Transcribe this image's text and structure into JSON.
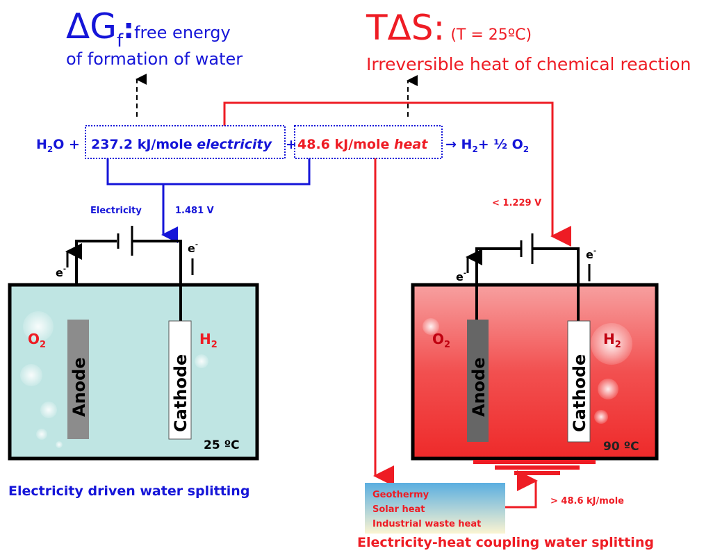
{
  "colors": {
    "blue": "#1515d8",
    "red": "#ee1c24",
    "cold_water": "#bfe5e3",
    "hot_water": "#f03a3a"
  },
  "left_title": {
    "main": "ΔG",
    "sub": "f",
    "colon": ":",
    "desc": "free energy",
    "line2": "of formation of water"
  },
  "right_title": {
    "main": "TΔS:",
    "temp": "(T = 25ºC)",
    "line2": "Irreversible heat of chemical reaction"
  },
  "equation": {
    "h2o_h": "H",
    "h2o_sub": "2",
    "h2o_o": "O +",
    "elec_value": "237.2 kJ/mole",
    "elec_word": "electricity",
    "plus": "+",
    "heat_value": "48.6 kJ/mole",
    "heat_word": "heat",
    "arrow": "→ H",
    "h2_sub": "2",
    "rest": "+ ½ O",
    "o2_sub": "2"
  },
  "left_cell": {
    "electricity_label": "Electricity",
    "voltage": "1.481 V",
    "electron": "e",
    "electron_sup": "-",
    "o2": "O",
    "h2": "H",
    "sub": "2",
    "anode": "Anode",
    "cathode": "Cathode",
    "temperature": "25 ºC",
    "caption": "Electricity driven water splitting"
  },
  "right_cell": {
    "voltage": "< 1.229 V",
    "electron": "e",
    "electron_sup": "-",
    "o2": "O",
    "h2": "H",
    "sub": "2",
    "anode": "Anode",
    "cathode": "Cathode",
    "temperature": "90 ºC",
    "heat_input": "> 48.6 kJ/mole",
    "caption": "Electricity-heat coupling water splitting"
  },
  "heat_sources": [
    "Geothermy",
    "Solar heat",
    "Industrial waste heat"
  ]
}
